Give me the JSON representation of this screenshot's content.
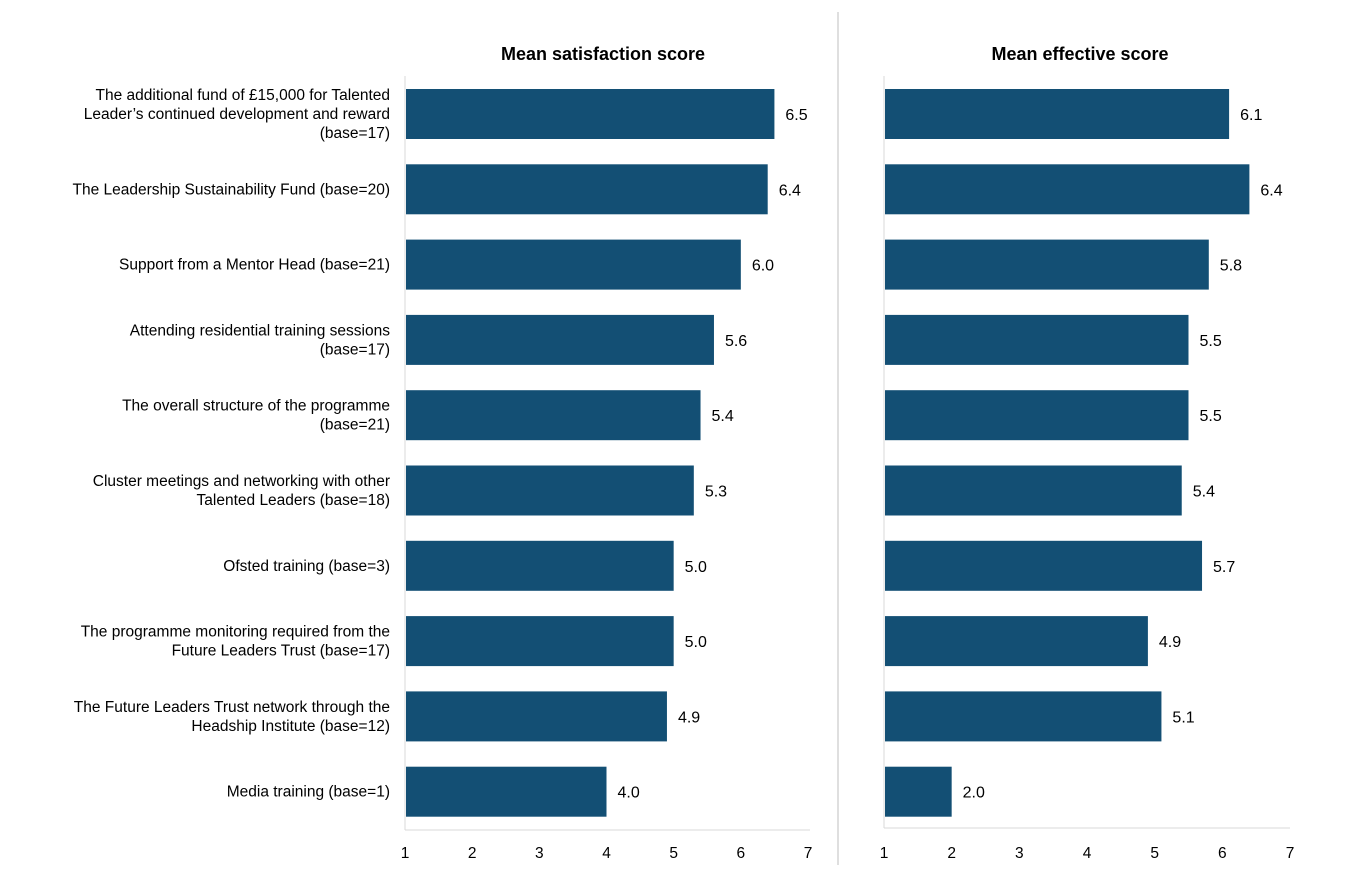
{
  "chart_data": [
    {
      "type": "bar",
      "orientation": "horizontal",
      "title": "Mean satisfaction  score",
      "categories": [
        [
          "The additional fund of £15,000 for Talented",
          "Leader’s continued development and reward",
          "(base=17)"
        ],
        [
          "The Leadership Sustainability Fund (base=20)"
        ],
        [
          "Support from a Mentor Head (base=21)"
        ],
        [
          "Attending residential training sessions",
          "(base=17)"
        ],
        [
          "The overall structure of the programme",
          "(base=21)"
        ],
        [
          "Cluster meetings and networking with other",
          "Talented Leaders (base=18)"
        ],
        [
          "Ofsted training (base=3)"
        ],
        [
          "The programme monitoring required from the",
          "Future Leaders Trust (base=17)"
        ],
        [
          "The Future Leaders Trust network through the",
          "Headship Institute (base=12)"
        ],
        [
          "Media training (base=1)"
        ]
      ],
      "values": [
        6.5,
        6.4,
        6.0,
        5.6,
        5.4,
        5.3,
        5.0,
        5.0,
        4.9,
        4.0
      ],
      "value_labels": [
        "6.5",
        "6.4",
        "6.0",
        "5.6",
        "5.4",
        "5.3",
        "5.0",
        "5.0",
        "4.9",
        "4.0"
      ],
      "xlim": [
        1,
        7
      ],
      "xticks": [
        "1",
        "2",
        "3",
        "4",
        "5",
        "6",
        "7"
      ],
      "bar_color": "#134f74",
      "grid": false
    },
    {
      "type": "bar",
      "orientation": "horizontal",
      "title": "Mean effective  score",
      "values": [
        6.1,
        6.4,
        5.8,
        5.5,
        5.5,
        5.4,
        5.7,
        4.9,
        5.1,
        2.0
      ],
      "value_labels": [
        "6.1",
        "6.4",
        "5.8",
        "5.5",
        "5.5",
        "5.4",
        "5.7",
        "4.9",
        "5.1",
        "2.0"
      ],
      "xlim": [
        1,
        7
      ],
      "xticks": [
        "1",
        "2",
        "3",
        "4",
        "5",
        "6",
        "7"
      ],
      "bar_color": "#134f74",
      "grid": false
    }
  ]
}
